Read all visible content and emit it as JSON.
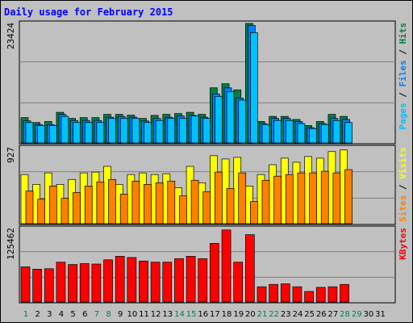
{
  "title": "Daily usage for February 2015",
  "colors": {
    "hits": "#008040",
    "files": "#0080ff",
    "pages": "#00c0ff",
    "visits": "#ffff00",
    "sites": "#ff8000",
    "kbytes": "#ff0000",
    "title": "#0000ff",
    "day_weekday": "#000000",
    "day_weekend": "#00805c"
  },
  "chart_data": [
    {
      "type": "bar",
      "title": "Daily usage for February 2015",
      "y_max_label": "23424",
      "legend": [
        {
          "name": "Hits",
          "color": "#008040"
        },
        {
          "name": "Files",
          "color": "#0080ff"
        },
        {
          "name": "Pages",
          "color": "#00c0ff"
        }
      ],
      "series": [
        {
          "name": "Hits",
          "values": [
            4960,
            4000,
            4200,
            6000,
            4800,
            4960,
            4960,
            5600,
            5600,
            5440,
            4800,
            5400,
            5600,
            5760,
            6000,
            5600,
            10800,
            11600,
            10400,
            23424,
            4200,
            5200,
            5200,
            4600,
            3400,
            4200,
            5600,
            5200,
            0,
            0,
            0
          ]
        },
        {
          "name": "Files",
          "values": [
            4320,
            3600,
            3600,
            5600,
            4400,
            4400,
            4400,
            5040,
            5200,
            5040,
            4300,
            4800,
            5040,
            5280,
            5400,
            5040,
            9600,
            10800,
            8800,
            23040,
            3800,
            4800,
            4800,
            4200,
            3000,
            3800,
            4800,
            4600,
            0,
            0,
            0
          ]
        },
        {
          "name": "Pages",
          "values": [
            4000,
            3400,
            3400,
            5200,
            4000,
            4000,
            4000,
            4800,
            4800,
            4800,
            4000,
            4400,
            4800,
            4800,
            5280,
            4800,
            9120,
            10080,
            8400,
            21600,
            3600,
            4400,
            4400,
            3800,
            2800,
            3600,
            4400,
            4000,
            0,
            0,
            0
          ]
        }
      ]
    },
    {
      "type": "bar",
      "y_max_label": "927",
      "legend": [
        {
          "name": "Visits",
          "color": "#ffff00"
        },
        {
          "name": "Sites",
          "color": "#ff8000"
        }
      ],
      "series": [
        {
          "name": "Visits",
          "values": [
            600,
            480,
            620,
            480,
            540,
            620,
            630,
            700,
            480,
            600,
            620,
            600,
            610,
            440,
            700,
            500,
            830,
            790,
            810,
            460,
            600,
            720,
            800,
            750,
            820,
            800,
            880,
            900,
            0,
            0,
            0
          ]
        },
        {
          "name": "Sites",
          "values": [
            400,
            300,
            460,
            310,
            380,
            460,
            510,
            540,
            360,
            520,
            480,
            500,
            520,
            340,
            530,
            390,
            630,
            430,
            620,
            270,
            530,
            580,
            600,
            620,
            620,
            640,
            620,
            660,
            0,
            0,
            0
          ]
        }
      ]
    },
    {
      "type": "bar",
      "y_max_label": "125462",
      "legend": [
        {
          "name": "KBytes",
          "color": "#ff0000"
        }
      ],
      "series": [
        {
          "name": "KBytes",
          "values": [
            60000,
            56000,
            56800,
            68000,
            64000,
            65600,
            64800,
            72000,
            78000,
            76000,
            70000,
            68000,
            68000,
            74000,
            78000,
            74000,
            100000,
            123000,
            68000,
            115000,
            26000,
            30000,
            31000,
            26000,
            18000,
            25000,
            26000,
            30000,
            0,
            0,
            0
          ]
        }
      ]
    }
  ],
  "days": [
    "1",
    "2",
    "3",
    "4",
    "5",
    "6",
    "7",
    "8",
    "9",
    "10",
    "11",
    "12",
    "13",
    "14",
    "15",
    "16",
    "17",
    "18",
    "19",
    "20",
    "21",
    "22",
    "23",
    "24",
    "25",
    "26",
    "27",
    "28",
    "29",
    "30",
    "31"
  ],
  "weekend_days": [
    1,
    7,
    8,
    14,
    15,
    21,
    22,
    28,
    29
  ]
}
